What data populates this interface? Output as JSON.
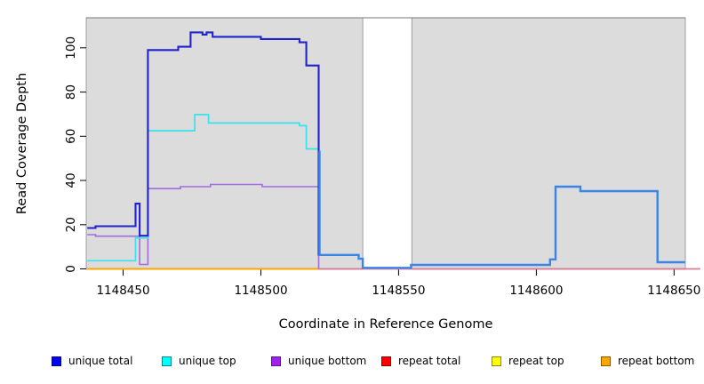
{
  "figure": {
    "xlabel": "Coordinate in Reference Genome",
    "ylabel": "Read Coverage Depth"
  },
  "legend": {
    "items": [
      {
        "label": "unique total",
        "color": "#0000FF",
        "border": "#00008B"
      },
      {
        "label": "unique top",
        "color": "#00FFFF",
        "border": "#008B8B"
      },
      {
        "label": "unique bottom",
        "color": "#A020F0",
        "border": "#551A8B"
      },
      {
        "label": "repeat total",
        "color": "#FF0000",
        "border": "#8B0000"
      },
      {
        "label": "repeat top",
        "color": "#FFFF00",
        "border": "#8B8B00"
      },
      {
        "label": "repeat bottom",
        "color": "#FFA500",
        "border": "#8B5A00"
      }
    ]
  },
  "chart_data": {
    "type": "line",
    "title": "",
    "xlabel": "Coordinate in Reference Genome",
    "ylabel": "Read Coverage Depth",
    "xlim": [
      1148436.6,
      1148654.1
    ],
    "ylim": [
      -0.2,
      113.6
    ],
    "x_ticks": [
      1148450,
      1148500,
      1148550,
      1148600,
      1148650
    ],
    "y_ticks": [
      0,
      20,
      40,
      60,
      80,
      100
    ],
    "grid": false,
    "legend_position": "bottom",
    "background": {
      "panel_color": "#DCDCDC",
      "panel_border": "#8A8A8A",
      "gap_x": [
        1148537,
        1148554.8
      ]
    },
    "series": [
      {
        "name": "repeat bottom",
        "color": "#FFA500",
        "width": 2,
        "steps": [
          [
            1148437,
            0
          ]
        ],
        "end": 1148521
      },
      {
        "name": "repeat total",
        "color": "#DC7A96",
        "width": 1.7,
        "steps": [
          [
            1148521,
            0
          ]
        ],
        "end": 1148659.5
      },
      {
        "name": "unique bottom",
        "color": "#A06CE0",
        "width": 1.6,
        "steps": [
          [
            1148437,
            15.5
          ],
          [
            1148440,
            14.8
          ],
          [
            1148456,
            2
          ],
          [
            1148459,
            36.3
          ],
          [
            1148470.8,
            37.2
          ],
          [
            1148481.7,
            38.2
          ],
          [
            1148500.5,
            37.2
          ],
          [
            1148521,
            0
          ]
        ],
        "end": 1148521
      },
      {
        "name": "unique top",
        "color": "#38E2EE",
        "width": 1.7,
        "steps": [
          [
            1148437,
            3.7
          ],
          [
            1148454.5,
            14
          ],
          [
            1148459,
            62.5
          ],
          [
            1148476,
            69.8
          ],
          [
            1148481,
            66
          ],
          [
            1148514,
            64.8
          ],
          [
            1148516.5,
            54.3
          ],
          [
            1148521,
            53
          ]
        ],
        "end": 1148521
      },
      {
        "name": "unique total",
        "color": "#2222CC",
        "width": 2.1,
        "steps": [
          [
            1148437,
            18.5
          ],
          [
            1148440,
            19.3
          ],
          [
            1148454.5,
            29.5
          ],
          [
            1148456,
            15
          ],
          [
            1148459,
            99
          ],
          [
            1148470,
            100.5
          ],
          [
            1148474.5,
            107
          ],
          [
            1148478.8,
            106
          ],
          [
            1148480.3,
            107
          ],
          [
            1148482.5,
            105
          ],
          [
            1148500,
            104
          ],
          [
            1148514,
            102.5
          ],
          [
            1148516.5,
            92
          ],
          [
            1148521,
            6
          ]
        ],
        "end": 1148521
      },
      {
        "name": "total",
        "color": "#3C85E6",
        "width": 2.4,
        "steps": [
          [
            1148521,
            53
          ],
          [
            1148521.3,
            6.3
          ],
          [
            1148535.5,
            4.6
          ],
          [
            1148537,
            0.5
          ],
          [
            1148554.5,
            1.8
          ],
          [
            1148605,
            4.3
          ],
          [
            1148607,
            37.2
          ],
          [
            1148616,
            35.2
          ],
          [
            1148644,
            3
          ]
        ],
        "end": 1148654
      }
    ]
  }
}
